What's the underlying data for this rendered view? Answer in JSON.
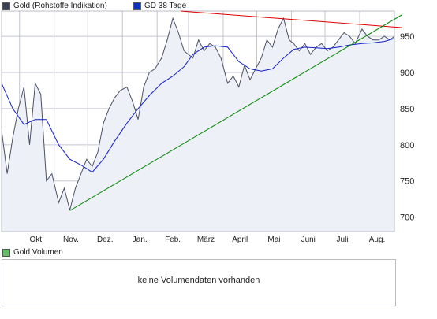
{
  "legend": {
    "main_label": "Gold (Rohstoffe Indikation)",
    "ma_label": "GD 38 Tage",
    "volume_label": "Gold Volumen"
  },
  "volume": {
    "message": "keine Volumendaten vorhanden"
  },
  "colors": {
    "price_line": "#4a5066",
    "price_fill": "#eef0f8",
    "ma_line": "#1020c8",
    "resistance_line": "#e00000",
    "support_line": "#008800",
    "grid": "#c4c6d0",
    "volume_swatch": "#66bb66",
    "ma_swatch": "#1030c0",
    "main_swatch": "#3b4254"
  },
  "chart_data": {
    "type": "line",
    "x_tick_labels": [
      "Okt.",
      "Nov.",
      "Dez.",
      "Jan.",
      "Feb.",
      "März",
      "April",
      "Mai",
      "Juni",
      "Juli",
      "Aug."
    ],
    "y_tick_labels": [
      "700",
      "750",
      "800",
      "850",
      "900",
      "950"
    ],
    "y_ticks": [
      700,
      750,
      800,
      850,
      900,
      950
    ],
    "ylim": [
      680,
      985
    ],
    "grid": true,
    "series": [
      {
        "name": "Gold (Rohstoffe Indikation)",
        "x": [
          "2008-09-15",
          "2008-09-20",
          "2008-09-25",
          "2008-09-30",
          "2008-10-05",
          "2008-10-10",
          "2008-10-15",
          "2008-10-20",
          "2008-10-25",
          "2008-10-30",
          "2008-11-05",
          "2008-11-10",
          "2008-11-15",
          "2008-11-20",
          "2008-11-25",
          "2008-11-30",
          "2008-12-05",
          "2008-12-10",
          "2008-12-15",
          "2008-12-20",
          "2008-12-25",
          "2008-12-30",
          "2009-01-05",
          "2009-01-10",
          "2009-01-15",
          "2009-01-20",
          "2009-01-25",
          "2009-01-30",
          "2009-02-05",
          "2009-02-10",
          "2009-02-15",
          "2009-02-20",
          "2009-02-25",
          "2009-03-01",
          "2009-03-05",
          "2009-03-10",
          "2009-03-15",
          "2009-03-20",
          "2009-03-25",
          "2009-03-30",
          "2009-04-05",
          "2009-04-10",
          "2009-04-15",
          "2009-04-20",
          "2009-04-25",
          "2009-04-30",
          "2009-05-05",
          "2009-05-10",
          "2009-05-15",
          "2009-05-20",
          "2009-05-25",
          "2009-05-30",
          "2009-06-03",
          "2009-06-08",
          "2009-06-13",
          "2009-06-18",
          "2009-06-23",
          "2009-06-28",
          "2009-07-03",
          "2009-07-08",
          "2009-07-13",
          "2009-07-18",
          "2009-07-23",
          "2009-07-28",
          "2009-08-03",
          "2009-08-08",
          "2009-08-13",
          "2009-08-18",
          "2009-08-23",
          "2009-08-28",
          "2009-09-01"
        ],
        "values": [
          820,
          760,
          810,
          850,
          880,
          800,
          885,
          870,
          750,
          760,
          720,
          740,
          710,
          740,
          760,
          780,
          770,
          790,
          830,
          850,
          865,
          875,
          880,
          860,
          835,
          880,
          900,
          905,
          920,
          945,
          975,
          955,
          930,
          925,
          920,
          945,
          930,
          940,
          935,
          920,
          885,
          895,
          880,
          910,
          890,
          905,
          920,
          945,
          935,
          960,
          975,
          945,
          940,
          930,
          940,
          925,
          935,
          940,
          930,
          935,
          945,
          955,
          950,
          940,
          960,
          950,
          945,
          945,
          950,
          945,
          950
        ]
      },
      {
        "name": "GD 38 Tage",
        "x": [
          "2008-09-15",
          "2008-09-25",
          "2008-10-05",
          "2008-10-15",
          "2008-10-25",
          "2008-11-05",
          "2008-11-15",
          "2008-11-25",
          "2008-12-05",
          "2008-12-15",
          "2008-12-25",
          "2009-01-05",
          "2009-01-15",
          "2009-01-25",
          "2009-02-05",
          "2009-02-15",
          "2009-02-25",
          "2009-03-05",
          "2009-03-15",
          "2009-03-25",
          "2009-04-05",
          "2009-04-15",
          "2009-04-25",
          "2009-05-05",
          "2009-05-15",
          "2009-05-25",
          "2009-06-03",
          "2009-06-13",
          "2009-06-23",
          "2009-07-03",
          "2009-07-13",
          "2009-07-23",
          "2009-08-03",
          "2009-08-13",
          "2009-08-23",
          "2009-09-01"
        ],
        "values": [
          885,
          850,
          828,
          835,
          835,
          800,
          780,
          772,
          762,
          780,
          805,
          830,
          850,
          868,
          885,
          895,
          908,
          925,
          935,
          937,
          935,
          915,
          905,
          902,
          905,
          920,
          932,
          935,
          934,
          933,
          935,
          938,
          940,
          941,
          943,
          947
        ]
      }
    ],
    "trendlines": [
      {
        "name": "resistance",
        "from": [
          "2009-02-22",
          985
        ],
        "to": [
          "2009-09-08",
          962
        ]
      },
      {
        "name": "support",
        "from": [
          "2008-11-15",
          709
        ],
        "to": [
          "2009-09-08",
          980
        ]
      }
    ]
  }
}
